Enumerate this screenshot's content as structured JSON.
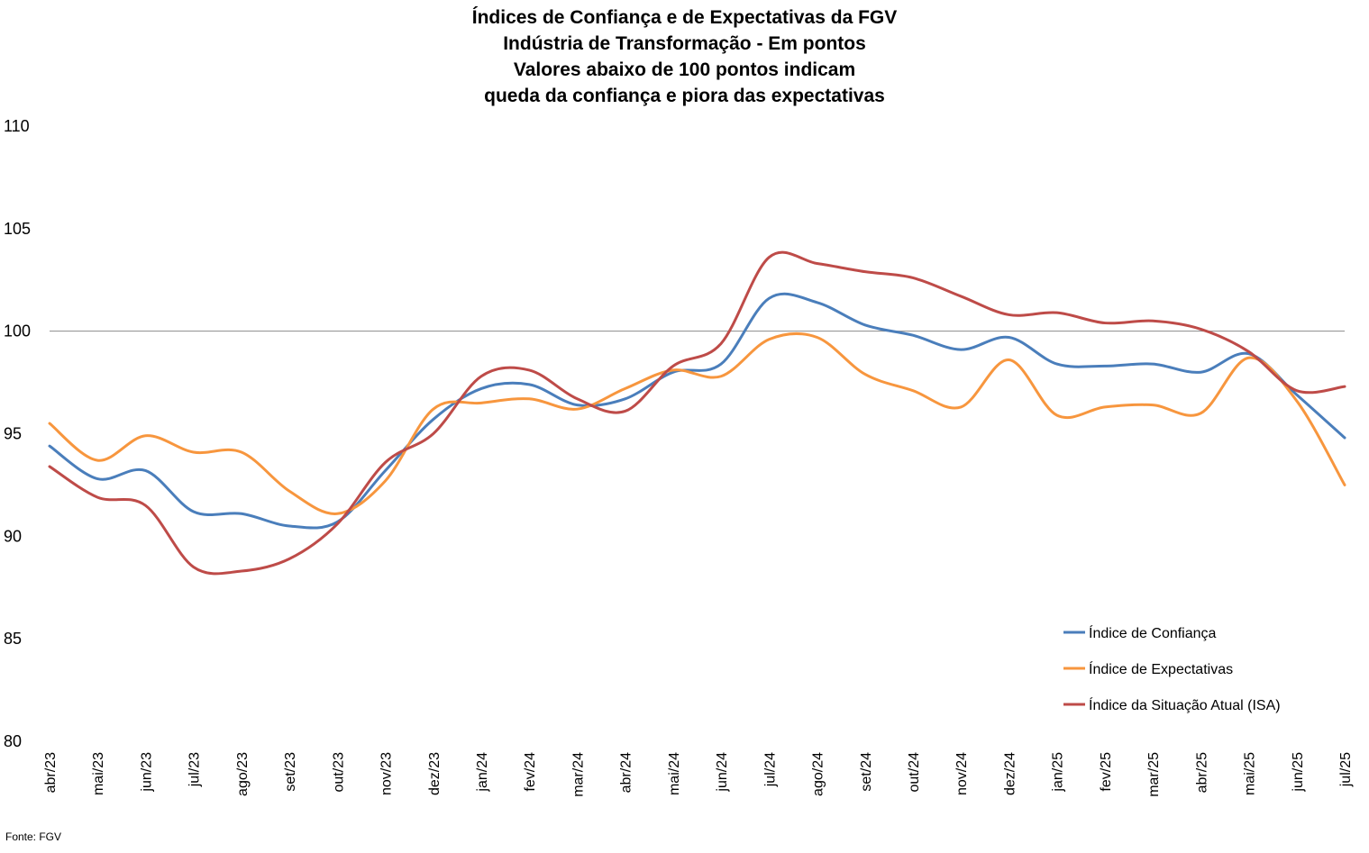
{
  "chart_data": {
    "type": "line",
    "title_lines": [
      "Índices de Confiança e de Expectativas da FGV",
      "Indústria de Transformação - Em pontos",
      "Valores abaixo de 100 pontos indicam",
      "queda da confiança e piora das expectativas"
    ],
    "categories": [
      "abr/23",
      "mai/23",
      "jun/23",
      "jul/23",
      "ago/23",
      "set/23",
      "out/23",
      "nov/23",
      "dez/23",
      "jan/24",
      "fev/24",
      "mar/24",
      "abr/24",
      "mai/24",
      "jun/24",
      "jul/24",
      "ago/24",
      "set/24",
      "out/24",
      "nov/24",
      "dez/24",
      "jan/25",
      "fev/25",
      "mar/25",
      "abr/25",
      "mai/25",
      "jun/25",
      "jul/25"
    ],
    "ylim": [
      80,
      110
    ],
    "yticks": [
      "80",
      "85",
      "90",
      "95",
      "100",
      "105",
      "110"
    ],
    "reference_line": 100,
    "series": [
      {
        "name": "Índice de Confiança",
        "color": "#4a7ebb",
        "values": [
          94.4,
          92.8,
          93.2,
          91.2,
          91.1,
          90.5,
          90.7,
          93.2,
          95.7,
          97.2,
          97.4,
          96.4,
          96.7,
          98.0,
          98.4,
          101.6,
          101.4,
          100.3,
          99.8,
          99.1,
          99.7,
          98.4,
          98.3,
          98.4,
          98.0,
          98.9,
          96.9,
          94.8
        ]
      },
      {
        "name": "Índice de Expectativas",
        "color": "#f7963e",
        "values": [
          95.5,
          93.7,
          94.9,
          94.1,
          94.1,
          92.2,
          91.1,
          92.7,
          96.2,
          96.5,
          96.7,
          96.2,
          97.2,
          98.1,
          97.8,
          99.6,
          99.7,
          97.9,
          97.1,
          96.3,
          98.6,
          95.9,
          96.3,
          96.4,
          96.0,
          98.7,
          96.6,
          92.5
        ]
      },
      {
        "name": "Índice da Situação Atual (ISA)",
        "color": "#be4b48",
        "values": [
          93.4,
          91.9,
          91.5,
          88.5,
          88.3,
          88.9,
          90.6,
          93.6,
          95.0,
          97.8,
          98.1,
          96.7,
          96.1,
          98.3,
          99.4,
          103.6,
          103.3,
          102.9,
          102.6,
          101.7,
          100.8,
          100.9,
          100.4,
          100.5,
          100.1,
          99.0,
          97.1,
          97.3
        ]
      }
    ],
    "legend_position": "bottom-right",
    "source": "Fonte: FGV"
  }
}
